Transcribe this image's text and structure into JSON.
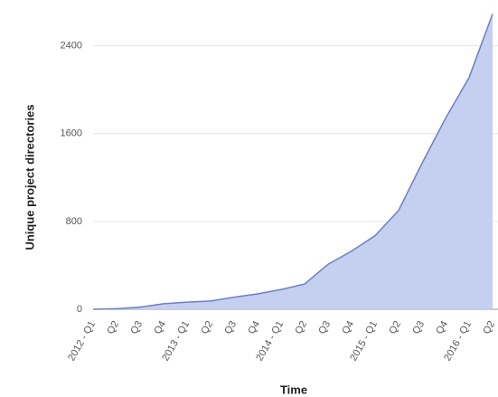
{
  "chart_data": {
    "type": "area",
    "x_label": "Time",
    "y_label": "Unique project directories",
    "categories": [
      "2012 - Q1",
      "Q2",
      "Q3",
      "Q4",
      "2013 - Q1",
      "Q2",
      "Q3",
      "Q4",
      "2014 - Q1",
      "Q2",
      "Q3",
      "Q4",
      "2015 - Q1",
      "Q2",
      "Q3",
      "Q4",
      "2016 - Q1",
      "Q2"
    ],
    "values": [
      0,
      5,
      20,
      50,
      65,
      75,
      110,
      140,
      180,
      230,
      410,
      530,
      670,
      900,
      1330,
      1740,
      2110,
      2690
    ],
    "color": "#6c7fc4",
    "fill": "#c5cff0",
    "ylim": [
      0,
      2800
    ],
    "yticks": [
      0,
      800,
      1600,
      2400
    ],
    "grid": true
  }
}
